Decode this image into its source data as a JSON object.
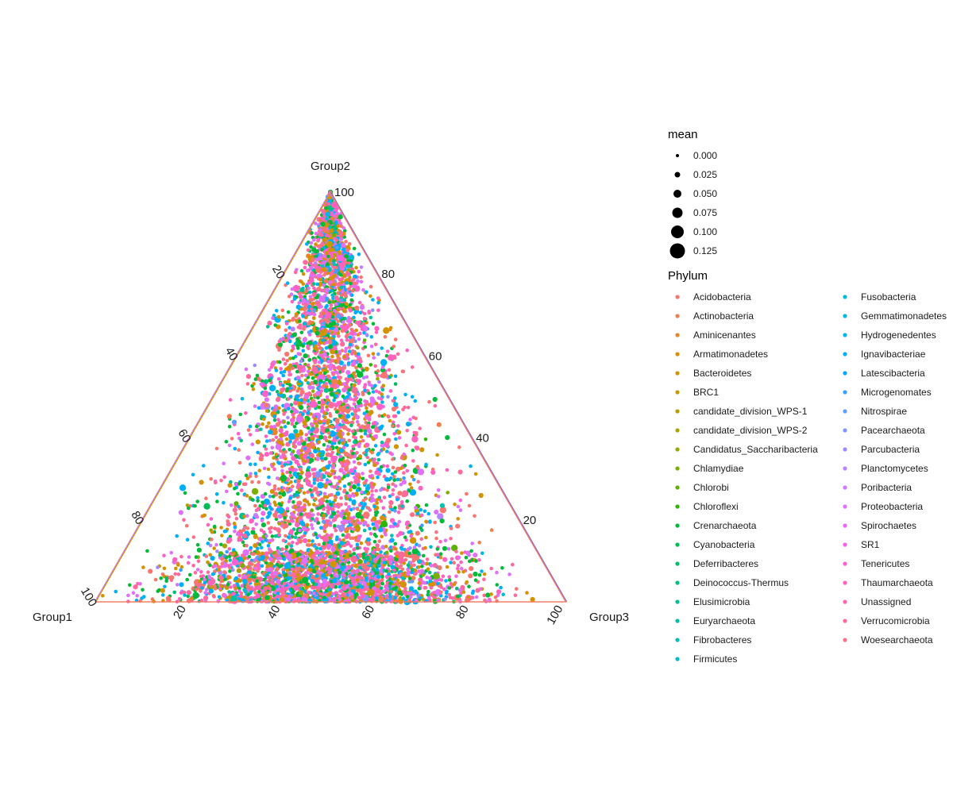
{
  "chart_data": {
    "type": "scatter",
    "subtype": "ternary",
    "axes": {
      "top": "Group2",
      "left": "Group1",
      "right": "Group3"
    },
    "range": [
      0,
      100
    ],
    "ticks": [
      20,
      40,
      60,
      80,
      100
    ],
    "tick_labels": [
      "20",
      "40",
      "60",
      "80",
      "100"
    ],
    "grid": false,
    "size_legend": {
      "title": "mean",
      "entries": [
        "0.000",
        "0.025",
        "0.050",
        "0.075",
        "0.100",
        "0.125"
      ],
      "values": [
        0.0,
        0.025,
        0.05,
        0.075,
        0.1,
        0.125
      ]
    },
    "color_legend": {
      "title": "Phylum",
      "placement": "right",
      "entries": [
        {
          "name": "Acidobacteria",
          "color": "#F8766D"
        },
        {
          "name": "Actinobacteria",
          "color": "#F17E4F"
        },
        {
          "name": "Aminicenantes",
          "color": "#E88526"
        },
        {
          "name": "Armatimonadetes",
          "color": "#DE8C00"
        },
        {
          "name": "Bacteroidetes",
          "color": "#D39200"
        },
        {
          "name": "BRC1",
          "color": "#C59900"
        },
        {
          "name": "candidate_division_WPS-1",
          "color": "#B79F00"
        },
        {
          "name": "candidate_division_WPS-2",
          "color": "#A6A400"
        },
        {
          "name": "Candidatus_Saccharibacteria",
          "color": "#93AA00"
        },
        {
          "name": "Chlamydiae",
          "color": "#7CAE00"
        },
        {
          "name": "Chlorobi",
          "color": "#5EB300"
        },
        {
          "name": "Chloroflexi",
          "color": "#2EB600"
        },
        {
          "name": "Crenarchaeota",
          "color": "#00BA38"
        },
        {
          "name": "Cyanobacteria",
          "color": "#00BC56"
        },
        {
          "name": "Deferribacteres",
          "color": "#00BE6C"
        },
        {
          "name": "Deinococcus-Thermus",
          "color": "#00C07F"
        },
        {
          "name": "Elusimicrobia",
          "color": "#00C091"
        },
        {
          "name": "Euryarchaeota",
          "color": "#00C1A2"
        },
        {
          "name": "Fibrobacteres",
          "color": "#00C0B2"
        },
        {
          "name": "Firmicutes",
          "color": "#00BFC4"
        },
        {
          "name": "Fusobacteria",
          "color": "#00BDD3"
        },
        {
          "name": "Gemmatimonadetes",
          "color": "#00BAE0"
        },
        {
          "name": "Hydrogenedentes",
          "color": "#00B5EC"
        },
        {
          "name": "Ignavibacteriae",
          "color": "#00B0F6"
        },
        {
          "name": "Latescibacteria",
          "color": "#00A9FF"
        },
        {
          "name": "Microgenomates",
          "color": "#35A2FF"
        },
        {
          "name": "Nitrospirae",
          "color": "#619CFF"
        },
        {
          "name": "Pacearchaeota",
          "color": "#8494FF"
        },
        {
          "name": "Parcubacteria",
          "color": "#A08AFF"
        },
        {
          "name": "Planctomycetes",
          "color": "#B983FF"
        },
        {
          "name": "Poribacteria",
          "color": "#CF78FF"
        },
        {
          "name": "Proteobacteria",
          "color": "#DF70F8"
        },
        {
          "name": "Spirochaetes",
          "color": "#EC69EF"
        },
        {
          "name": "SR1",
          "color": "#F664E3"
        },
        {
          "name": "Tenericutes",
          "color": "#FD61D1"
        },
        {
          "name": "Thaumarchaeota",
          "color": "#FF61C3"
        },
        {
          "name": "Unassigned",
          "color": "#FF64B0"
        },
        {
          "name": "Verrucomicrobia",
          "color": "#FF699C"
        },
        {
          "name": "Woesearchaeota",
          "color": "#FC7088"
        }
      ]
    },
    "dominant_colors": [
      "#F8766D",
      "#DF70F8",
      "#FF61C3",
      "#D39200",
      "#FF699C",
      "#00B0F6",
      "#00BA38"
    ],
    "point_count": 6000,
    "distribution_note": "dense cloud of thousands of points filling the whole triangle, thickest through the center and along the bottom edge"
  }
}
